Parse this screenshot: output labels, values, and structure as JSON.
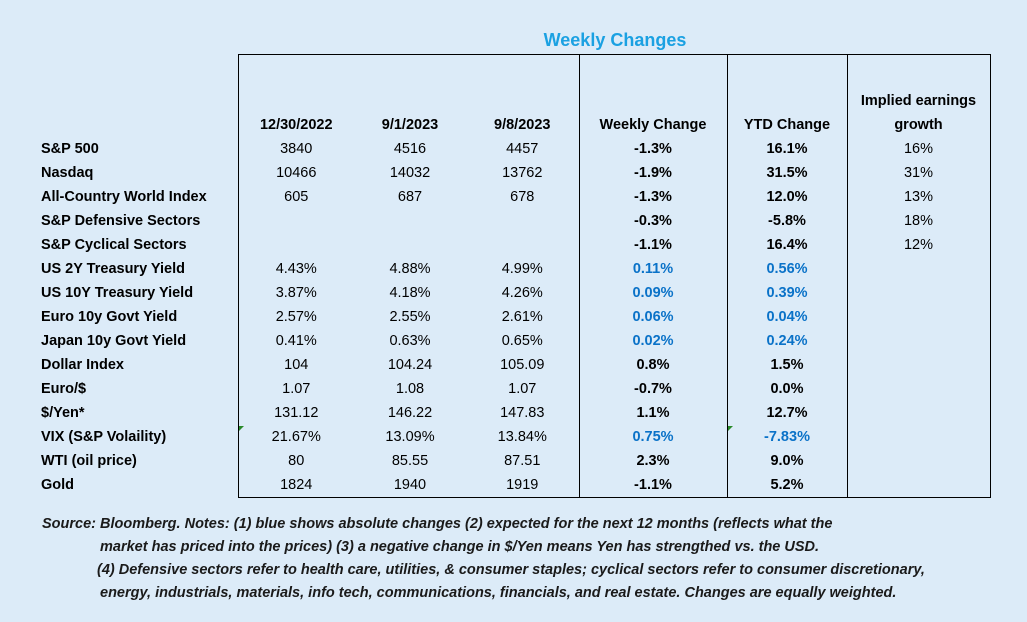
{
  "title": "Weekly Changes",
  "headers": [
    "12/30/2022",
    "9/1/2023",
    "9/8/2023",
    "Weekly Change",
    "YTD Change",
    "Implied earnings growth"
  ],
  "rows": [
    {
      "label": "S&P 500",
      "v1": "3840",
      "v2": "4516",
      "v3": "4457",
      "weekly": "-1.3%",
      "ytd": "16.1%",
      "earn": "16%",
      "blue": false
    },
    {
      "label": "Nasdaq",
      "v1": "10466",
      "v2": "14032",
      "v3": "13762",
      "weekly": "-1.9%",
      "ytd": "31.5%",
      "earn": "31%",
      "blue": false
    },
    {
      "label": "All-Country World Index",
      "v1": "605",
      "v2": "687",
      "v3": "678",
      "weekly": "-1.3%",
      "ytd": "12.0%",
      "earn": "13%",
      "blue": false
    },
    {
      "label": "S&P Defensive Sectors",
      "v1": "",
      "v2": "",
      "v3": "",
      "weekly": "-0.3%",
      "ytd": "-5.8%",
      "earn": "18%",
      "blue": false
    },
    {
      "label": "S&P Cyclical Sectors",
      "v1": "",
      "v2": "",
      "v3": "",
      "weekly": "-1.1%",
      "ytd": "16.4%",
      "earn": "12%",
      "blue": false
    },
    {
      "label": "US 2Y Treasury Yield",
      "v1": "4.43%",
      "v2": "4.88%",
      "v3": "4.99%",
      "weekly": "0.11%",
      "ytd": "0.56%",
      "earn": "",
      "blue": true
    },
    {
      "label": "US 10Y Treasury Yield",
      "v1": "3.87%",
      "v2": "4.18%",
      "v3": "4.26%",
      "weekly": "0.09%",
      "ytd": "0.39%",
      "earn": "",
      "blue": true
    },
    {
      "label": "Euro 10y Govt Yield",
      "v1": "2.57%",
      "v2": "2.55%",
      "v3": "2.61%",
      "weekly": "0.06%",
      "ytd": "0.04%",
      "earn": "",
      "blue": true
    },
    {
      "label": "Japan 10y Govt Yield",
      "v1": "0.41%",
      "v2": "0.63%",
      "v3": "0.65%",
      "weekly": "0.02%",
      "ytd": "0.24%",
      "earn": "",
      "blue": true
    },
    {
      "label": "Dollar Index",
      "v1": "104",
      "v2": "104.24",
      "v3": "105.09",
      "weekly": "0.8%",
      "ytd": "1.5%",
      "earn": "",
      "blue": false
    },
    {
      "label": "Euro/$",
      "v1": "1.07",
      "v2": "1.08",
      "v3": "1.07",
      "weekly": "-0.7%",
      "ytd": "0.0%",
      "earn": "",
      "blue": false
    },
    {
      "label": "$/Yen*",
      "v1": "131.12",
      "v2": "146.22",
      "v3": "147.83",
      "weekly": "1.1%",
      "ytd": "12.7%",
      "earn": "",
      "blue": false
    },
    {
      "label": "VIX (S&P Volaility)",
      "v1": "21.67%",
      "v2": "13.09%",
      "v3": "13.84%",
      "weekly": "0.75%",
      "ytd": "-7.83%",
      "earn": "",
      "blue": true
    },
    {
      "label": "WTI (oil price)",
      "v1": "80",
      "v2": "85.55",
      "v3": "87.51",
      "weekly": "2.3%",
      "ytd": "9.0%",
      "earn": "",
      "blue": false
    },
    {
      "label": "Gold",
      "v1": "1824",
      "v2": "1940",
      "v3": "1919",
      "weekly": "-1.1%",
      "ytd": "5.2%",
      "earn": "",
      "blue": false
    }
  ],
  "notes": [
    "Source: Bloomberg. Notes: (1) blue shows absolute changes (2) expected for the next 12 months (reflects what the",
    "market has priced into the prices) (3) a negative change in $/Yen means Yen has strengthed vs. the USD.",
    "(4) Defensive sectors refer to health care, utilities, & consumer staples; cyclical sectors refer to consumer discretionary,",
    "energy, industrials, materials, info tech, communications, financials, and real estate. Changes are equally weighted."
  ]
}
